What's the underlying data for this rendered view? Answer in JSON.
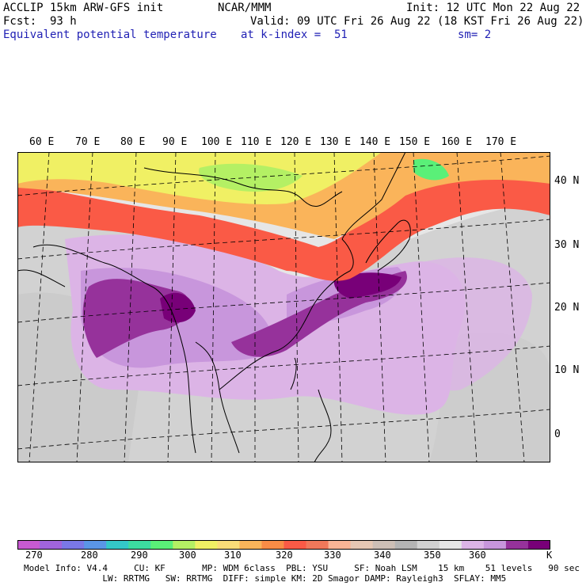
{
  "header": {
    "model": "ACCLIP 15km ARW-GFS init",
    "org": "NCAR/MMM",
    "init": "Init: 12 UTC Mon 22 Aug 22",
    "fcst": "Fcst:  93 h",
    "valid": "Valid: 09 UTC Fri 26 Aug 22 (18 KST Fri 26 Aug 22)",
    "field": "Equivalent potential temperature",
    "level": "at k-index =  51",
    "smooth": "sm= 2"
  },
  "lon_labels": [
    "60 E",
    "70 E",
    "80 E",
    "90 E",
    "100 E",
    "110 E",
    "120 E",
    "130 E",
    "140 E",
    "150 E",
    "160 E",
    "170 E"
  ],
  "lat_labels": [
    "40 N",
    "30 N",
    "20 N",
    "10 N",
    "0"
  ],
  "colorbar": {
    "colors": [
      "#c85ad2",
      "#a064dc",
      "#7a78e6",
      "#5a96e6",
      "#34c8c8",
      "#3cdca0",
      "#5af078",
      "#b4f064",
      "#f0f064",
      "#fadc78",
      "#fab45a",
      "#fa8c46",
      "#fa5a46",
      "#f0785a",
      "#fab496",
      "#e6c8b4",
      "#cdbfb6",
      "#b4b4b4",
      "#d2d2d2",
      "#e6e6e6",
      "#dcb4e6",
      "#c896dc",
      "#96329b",
      "#780078"
    ],
    "labels": [
      "270",
      "280",
      "290",
      "300",
      "310",
      "320",
      "330",
      "340",
      "350",
      "360"
    ],
    "unit": "K"
  },
  "footer": {
    "line1": "Model Info: V4.4     CU: KF       MP: WDM 6class  PBL: YSU     SF: Noah LSM    15 km    51 levels   90 sec",
    "line2": "               LW: RRTMG   SW: RRTMG  DIFF: simple KM: 2D Smagor DAMP: Rayleigh3  SFLAY: MM5"
  },
  "map_colors": {
    "ocean": "#e6e6e6",
    "land_gray": "#c8c8c8",
    "purple_light": "#dcb4e6",
    "purple_mid": "#b478d2",
    "purple_dark": "#780078",
    "red": "#fa5a46",
    "orange": "#fab45a",
    "yellow": "#f0f064",
    "green": "#b4f064"
  }
}
